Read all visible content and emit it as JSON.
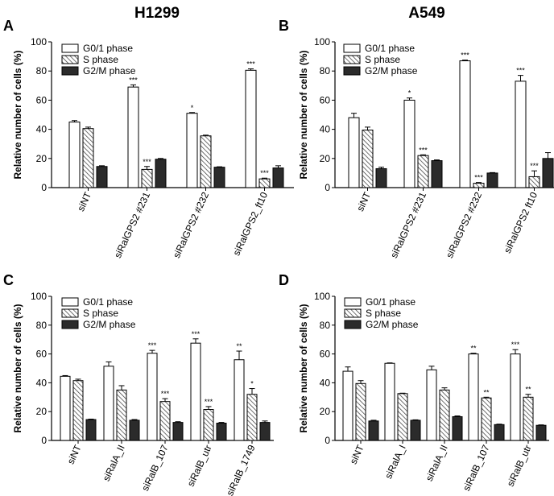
{
  "header": {
    "left_title": "H1299",
    "right_title": "A549"
  },
  "chart_data": [
    {
      "panel": "A",
      "type": "bar",
      "ylabel": "Relative number of cells (%)",
      "ylim": [
        0,
        100
      ],
      "yticks": [
        0,
        20,
        40,
        60,
        80,
        100
      ],
      "legend": [
        "G0/1 phase",
        "S phase",
        "G2/M phase"
      ],
      "legend_position": "top-left",
      "categories": [
        "siNT",
        "siRalGPS2 #231",
        "siRalGPS2 #232",
        "siRalGPS2_ft10"
      ],
      "series": [
        {
          "name": "G0/1 phase",
          "values": [
            45,
            69,
            51,
            80.5
          ],
          "errors": [
            1,
            1.5,
            0.5,
            1
          ],
          "stars": [
            "",
            "***",
            "*",
            "***"
          ]
        },
        {
          "name": "S phase",
          "values": [
            40.5,
            12.5,
            35.5,
            6
          ],
          "errors": [
            1,
            2,
            0.5,
            0.5
          ],
          "stars": [
            "",
            "***",
            "",
            "***"
          ]
        },
        {
          "name": "G2/M phase",
          "values": [
            14.5,
            19.5,
            14,
            13.5
          ],
          "errors": [
            0.5,
            0.5,
            0.3,
            1.5
          ],
          "stars": [
            "",
            "",
            "",
            ""
          ]
        }
      ]
    },
    {
      "panel": "B",
      "type": "bar",
      "ylabel": "Relative number of cells (%)",
      "ylim": [
        0,
        100
      ],
      "yticks": [
        0,
        20,
        40,
        60,
        80,
        100
      ],
      "legend": [
        "G0/1 phase",
        "S phase",
        "G2/M phase"
      ],
      "legend_position": "top-left",
      "categories": [
        "siNT",
        "siRalGPS2 #231",
        "siRalGPS2 #232",
        "siRalGPS2 ft10"
      ],
      "series": [
        {
          "name": "G0/1 phase",
          "values": [
            48,
            60,
            87,
            73
          ],
          "errors": [
            3,
            1.5,
            0.5,
            4
          ],
          "stars": [
            "",
            "*",
            "***",
            "***"
          ]
        },
        {
          "name": "S phase",
          "values": [
            39.5,
            22,
            3,
            7.5
          ],
          "errors": [
            2,
            0.5,
            0.5,
            4
          ],
          "stars": [
            "",
            "***",
            "***",
            "***"
          ]
        },
        {
          "name": "G2/M phase",
          "values": [
            13,
            18.5,
            10,
            20
          ],
          "errors": [
            1,
            0.5,
            0.3,
            4
          ],
          "stars": [
            "",
            "",
            "",
            ""
          ]
        }
      ]
    },
    {
      "panel": "C",
      "type": "bar",
      "ylabel": "Relative number of cells (%)",
      "ylim": [
        0,
        100
      ],
      "yticks": [
        0,
        20,
        40,
        60,
        80,
        100
      ],
      "legend": [
        "G0/1 phase",
        "S phase",
        "G2/M phase"
      ],
      "legend_position": "top-right",
      "categories": [
        "siNT",
        "siRalA_II",
        "siRalB_107",
        "siRalB_utr",
        "siRalB_1749"
      ],
      "series": [
        {
          "name": "G0/1 phase",
          "values": [
            44.5,
            51.5,
            60.5,
            67.5,
            56
          ],
          "errors": [
            0.5,
            3,
            2,
            3,
            6
          ],
          "stars": [
            "",
            "",
            "***",
            "***",
            "**"
          ]
        },
        {
          "name": "S phase",
          "values": [
            41.5,
            35,
            27,
            21.5,
            32
          ],
          "errors": [
            1,
            3,
            2,
            2,
            4
          ],
          "stars": [
            "",
            "",
            "***",
            "***",
            "*"
          ]
        },
        {
          "name": "G2/M phase",
          "values": [
            14.5,
            14,
            12.5,
            12,
            12.5
          ],
          "errors": [
            0.3,
            0.5,
            0.5,
            0.5,
            1
          ],
          "stars": [
            "",
            "",
            "",
            "",
            ""
          ]
        }
      ]
    },
    {
      "panel": "D",
      "type": "bar",
      "ylabel": "Relative number of cells (%)",
      "ylim": [
        0,
        100
      ],
      "yticks": [
        0,
        20,
        40,
        60,
        80,
        100
      ],
      "legend": [
        "G0/1 phase",
        "S phase",
        "G2/M phase"
      ],
      "legend_position": "top-right",
      "categories": [
        "siNT",
        "siRalA_I",
        "siRalA_II",
        "siRalB_107",
        "siRalB_utr"
      ],
      "series": [
        {
          "name": "G0/1 phase",
          "values": [
            48,
            53.5,
            49,
            60,
            60
          ],
          "errors": [
            3,
            0.3,
            2.5,
            0.5,
            3
          ],
          "stars": [
            "",
            "",
            "",
            "**",
            "***"
          ]
        },
        {
          "name": "S phase",
          "values": [
            39.5,
            32.5,
            35,
            29.5,
            30
          ],
          "errors": [
            2,
            0.3,
            1.5,
            0.5,
            2
          ],
          "stars": [
            "",
            "",
            "",
            "**",
            "**"
          ]
        },
        {
          "name": "G2/M phase",
          "values": [
            13.5,
            14,
            16.5,
            11,
            10.5
          ],
          "errors": [
            0.5,
            0.3,
            0.5,
            0.3,
            0.3
          ],
          "stars": [
            "",
            "",
            "",
            "",
            ""
          ]
        }
      ]
    }
  ]
}
